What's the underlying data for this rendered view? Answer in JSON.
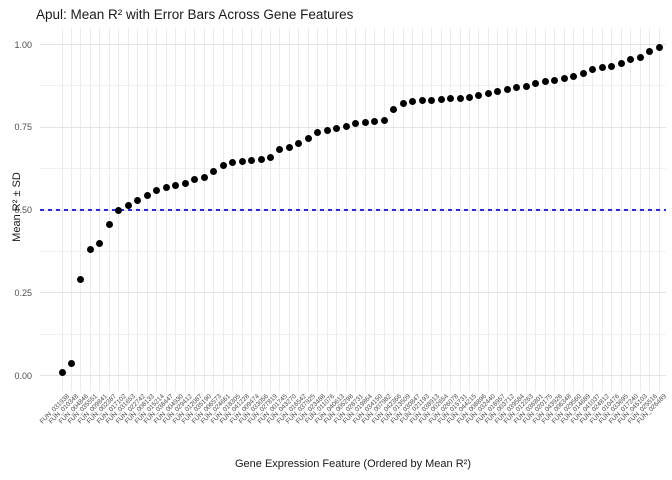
{
  "header": {
    "title": "Apul: Mean R² with Error Bars Across Gene Features"
  },
  "chart_data": {
    "type": "scatter",
    "title": "Apul: Mean R² with Error Bars Across Gene Features",
    "xlabel": "Gene Expression Feature (Ordered by Mean R²)",
    "ylabel": "Mean R² ± SD",
    "ylim": [
      -0.05,
      1.05
    ],
    "y_major_ticks": [
      0.0,
      0.25,
      0.5,
      0.75,
      1.0
    ],
    "y_tick_labels": [
      "0.00",
      "0.25",
      "0.50",
      "0.75",
      "1.00"
    ],
    "y_minor_ticks": [
      0.125,
      0.375,
      0.625,
      0.875
    ],
    "grid": "major-and-minor, light gray on white (theme_minimal)",
    "legend_position": "none",
    "point_color": "#000000",
    "reference_line": {
      "y": 0.5,
      "style": "dashed",
      "color": "#2a2ae0"
    },
    "error_bars": "SD error bars stated in title; visually negligible (within point size)",
    "categories": [
      "FUN_031938",
      "FUN_010348",
      "FUN_004846",
      "FUN_035551",
      "FUN_009841",
      "FUN_002387",
      "FUN_017102",
      "FUN_031653",
      "FUN_022742",
      "FUN_008133",
      "FUN_015214",
      "FUN_038447",
      "FUN_004930",
      "FUN_029412",
      "FUN_012087",
      "FUN_035190",
      "FUN_006573",
      "FUN_024661",
      "FUN_018305",
      "FUN_041228",
      "FUN_009474",
      "FUN_033056",
      "FUN_027819",
      "FUN_001745",
      "FUN_043270",
      "FUN_016542",
      "FUN_037925",
      "FUN_023488",
      "FUN_011076",
      "FUN_040613",
      "FUN_005298",
      "FUN_028731",
      "FUN_019864",
      "FUN_034150",
      "FUN_007982",
      "FUN_042366",
      "FUN_013509",
      "FUN_030847",
      "FUN_021193",
      "FUN_038913",
      "FUN_002654",
      "FUN_026078",
      "FUN_015731",
      "FUN_044215",
      "FUN_008896",
      "FUN_032440",
      "FUN_018957",
      "FUN_003712",
      "FUN_039584",
      "FUN_012263",
      "FUN_036801",
      "FUN_020175",
      "FUN_043926",
      "FUN_006348",
      "FUN_029560",
      "FUN_014689",
      "FUN_041037",
      "FUN_024812",
      "FUN_010476",
      "FUN_033695",
      "FUN_017240",
      "FUN_045103",
      "FUN_025516",
      "FUN_026489"
    ],
    "values": [
      0.01,
      0.035,
      0.29,
      0.38,
      0.4,
      0.455,
      0.5,
      0.515,
      0.53,
      0.545,
      0.56,
      0.567,
      0.574,
      0.58,
      0.592,
      0.597,
      0.617,
      0.633,
      0.642,
      0.647,
      0.65,
      0.653,
      0.658,
      0.684,
      0.69,
      0.7,
      0.717,
      0.733,
      0.74,
      0.746,
      0.752,
      0.76,
      0.764,
      0.768,
      0.77,
      0.803,
      0.822,
      0.827,
      0.83,
      0.832,
      0.834,
      0.836,
      0.838,
      0.84,
      0.846,
      0.852,
      0.858,
      0.864,
      0.871,
      0.872,
      0.882,
      0.888,
      0.89,
      0.896,
      0.902,
      0.912,
      0.925,
      0.93,
      0.935,
      0.944,
      0.954,
      0.96,
      0.979,
      0.99
    ]
  },
  "colors": {
    "background": "#ffffff",
    "gridline_major": "#e4e4e4",
    "gridline_minor": "#f1f1f1",
    "point": "#000000",
    "reference_line": "#2a2ae0",
    "axis_text": "#4d4d4d",
    "title_text": "#1a1a1a"
  }
}
